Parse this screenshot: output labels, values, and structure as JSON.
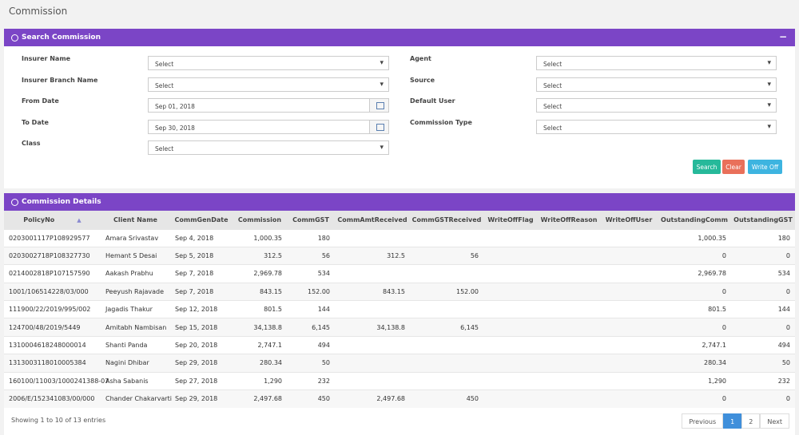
{
  "header": {
    "title": "Commission"
  },
  "search": {
    "title": "Search Commission",
    "left": [
      {
        "label": "Insurer Name",
        "value": "Select"
      },
      {
        "label": "Insurer Branch Name",
        "value": "Select"
      },
      {
        "label": "From Date",
        "value": "Sep 01, 2018"
      },
      {
        "label": "To Date",
        "value": "Sep 30, 2018"
      },
      {
        "label": "Class",
        "value": "Select"
      }
    ],
    "right": [
      {
        "label": "Agent",
        "value": "Select"
      },
      {
        "label": "Source",
        "value": "Select"
      },
      {
        "label": "Default User",
        "value": "Select"
      },
      {
        "label": "Commission Type",
        "value": "Select"
      }
    ],
    "buttons": [
      "Search",
      "Clear",
      "Write Off"
    ]
  },
  "details": {
    "title": "Commission Details",
    "table": {
      "columns": [
        "PolicyNo",
        "Client Name",
        "CommGenDate",
        "Commission",
        "CommGST",
        "CommAmtReceived",
        "CommGSTReceived",
        "WriteOffFlag",
        "WriteOffReason",
        "WriteOffUser",
        "OutstandingComm",
        "OutstandingGST"
      ],
      "rows": [
        [
          "0203001117P108929577",
          "Amara Srivastav",
          "Sep 4, 2018",
          "1,000.35",
          "180",
          null,
          null,
          null,
          null,
          null,
          "1,000.35",
          "180"
        ],
        [
          "0203002718P108327730",
          "Hemant S Desai",
          "Sep 5, 2018",
          "312.5",
          "56",
          "312.5",
          "56",
          null,
          null,
          null,
          "0",
          "0"
        ],
        [
          "0214002818P107157590",
          "Aakash Prabhu",
          "Sep 7, 2018",
          "2,969.78",
          "534",
          null,
          null,
          null,
          null,
          null,
          "2,969.78",
          "534"
        ],
        [
          "1001/106514228/03/000",
          "Peeyush Rajavade",
          "Sep 7, 2018",
          "843.15",
          "152.00",
          "843.15",
          "152.00",
          null,
          null,
          null,
          "0",
          "0"
        ],
        [
          "111900/22/2019/995/002",
          "Jagadis Thakur",
          "Sep 12, 2018",
          "801.5",
          "144",
          null,
          null,
          null,
          null,
          null,
          "801.5",
          "144"
        ],
        [
          "124700/48/2019/5449",
          "Amitabh Nambisan",
          "Sep 15, 2018",
          "34,138.8",
          "6,145",
          "34,138.8",
          "6,145",
          null,
          null,
          null,
          "0",
          "0"
        ],
        [
          "1310004618248000014",
          "Shanti Panda",
          "Sep 20, 2018",
          "2,747.1",
          "494",
          null,
          null,
          null,
          null,
          null,
          "2,747.1",
          "494"
        ],
        [
          "1313003118010005384",
          "Nagini Dhibar",
          "Sep 29, 2018",
          "280.34",
          "50",
          null,
          null,
          null,
          null,
          null,
          "280.34",
          "50"
        ],
        [
          "160100/11003/1000241388-07",
          "Asha Sabanis",
          "Sep 27, 2018",
          "1,290",
          "232",
          null,
          null,
          null,
          null,
          null,
          "1,290",
          "232"
        ],
        [
          "2006/E/152341083/00/000",
          "Chander Chakarvarti",
          "Sep 29, 2018",
          "2,497.68",
          "450",
          "2,497.68",
          "450",
          null,
          null,
          null,
          "0",
          "0"
        ]
      ]
    },
    "summary": "Showing 1 to 10 of 13 entries",
    "pagination": [
      "Previous",
      "1",
      "2",
      "Next"
    ]
  }
}
